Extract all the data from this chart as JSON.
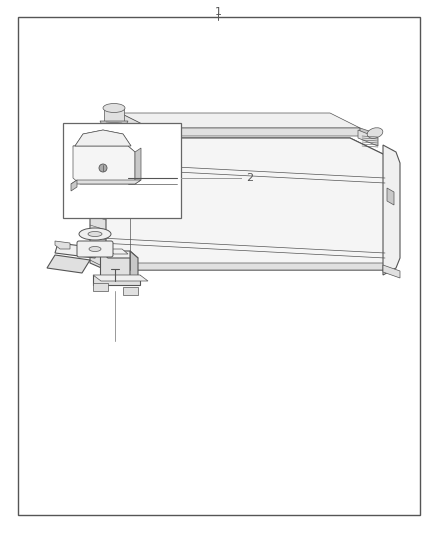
{
  "fig_width": 4.38,
  "fig_height": 5.33,
  "dpi": 100,
  "bg_color": "#ffffff",
  "border_color": "#555555",
  "line_color": "#555555",
  "label_color": "#555555",
  "leader_color": "#999999",
  "fill_white": "#ffffff",
  "fill_light": "#f0f0f0",
  "fill_mid": "#e0e0e0",
  "fill_dark": "#c8c8c8",
  "border_lw": 1.0,
  "part1_label": "1",
  "part2_label": "2",
  "label_fontsize": 8
}
